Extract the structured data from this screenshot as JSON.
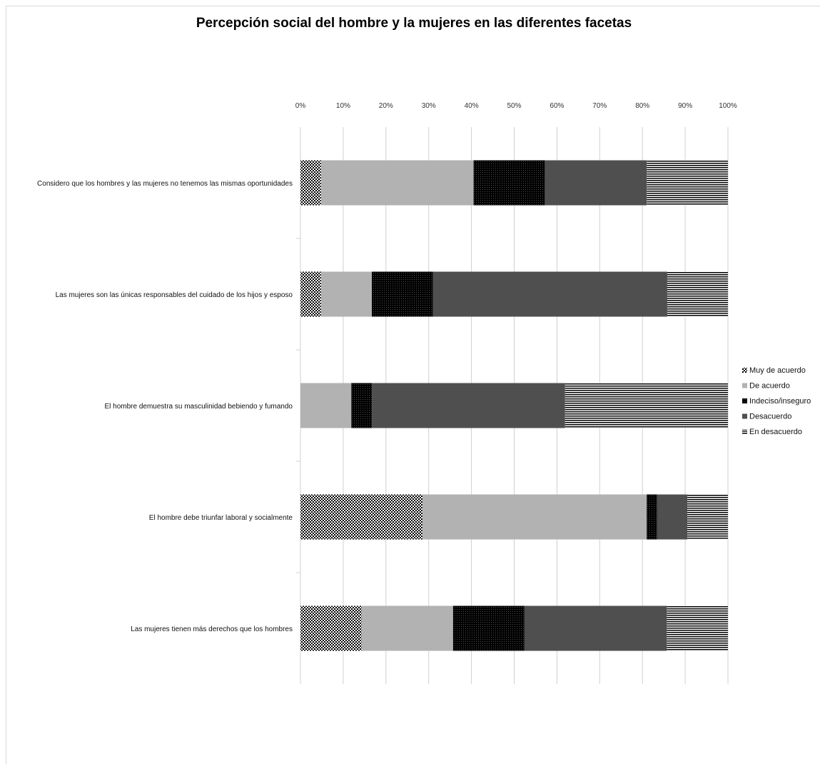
{
  "chart_data": {
    "type": "bar",
    "orientation": "horizontal",
    "stacked": "percent",
    "title": "Percepción social del hombre y la mujeres en las diferentes facetas",
    "xlabel": "",
    "ylabel": "",
    "xlim": [
      0,
      100
    ],
    "x_ticks": [
      "0%",
      "10%",
      "20%",
      "30%",
      "40%",
      "50%",
      "60%",
      "70%",
      "80%",
      "90%",
      "100%"
    ],
    "grid": true,
    "legend_position": "right",
    "categories": [
      "Considero que los hombres y las mujeres no tenemos las mismas oportunidades",
      "Las mujeres son las únicas responsables del cuidado de los hijos y esposo",
      "El hombre demuestra su masculinidad bebiendo y fumando",
      "El hombre debe triunfar laboral y socialmente",
      "Las mujeres tienen más derechos que los hombres"
    ],
    "series": [
      {
        "name": "Muy de acuerdo",
        "values": [
          4.8,
          4.8,
          0,
          28.6,
          14.3
        ]
      },
      {
        "name": "De acuerdo",
        "values": [
          35.7,
          11.9,
          11.9,
          52.4,
          21.4
        ]
      },
      {
        "name": "Indeciso/inseguro",
        "values": [
          16.7,
          14.3,
          4.8,
          2.4,
          16.7
        ]
      },
      {
        "name": "Desacuerdo",
        "values": [
          23.8,
          54.8,
          45.2,
          7.1,
          33.3
        ]
      },
      {
        "name": "En desacuerdo",
        "values": [
          19.0,
          14.2,
          38.1,
          9.5,
          14.3
        ]
      }
    ],
    "colors": {
      "muy_de_acuerdo": "#000000",
      "de_acuerdo": "#b2b2b2",
      "indeciso": "#111111",
      "desacuerdo": "#4f4f4f",
      "en_desacuerdo": "#000000",
      "gridline": "#d0d0d0"
    }
  }
}
